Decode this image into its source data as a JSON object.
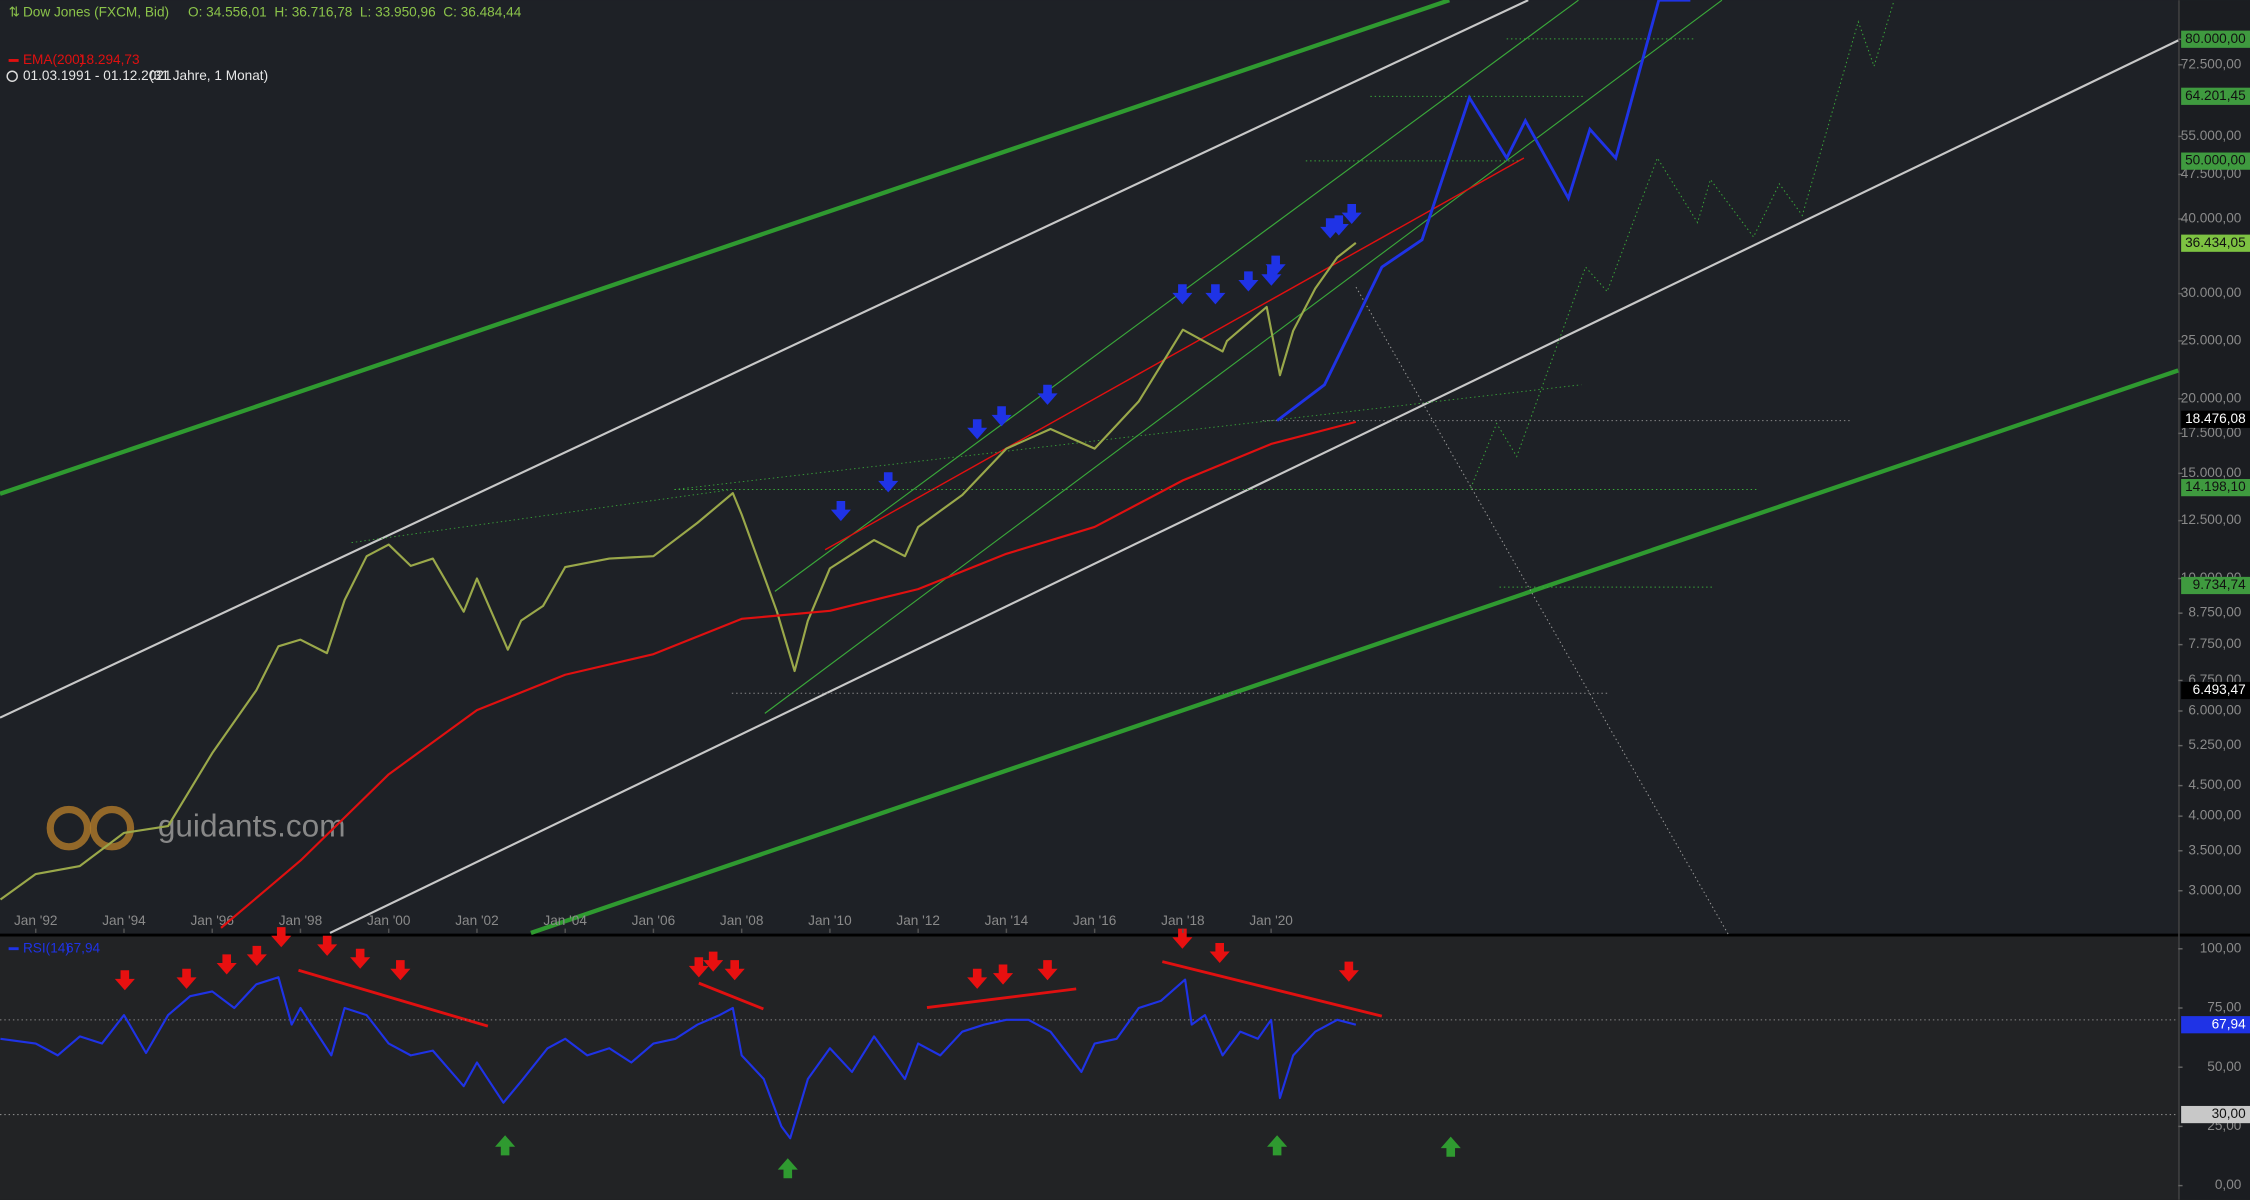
{
  "chart_data": [
    {
      "type": "line",
      "title": "Dow Jones (FXCM, Bid)",
      "quote": "O: 34.556,01  H: 36.716,78  L: 33.950,96  C: 36.484,44",
      "period": "01.03.1991 - 01.12.2021",
      "period_length": "(31 Jahre, 1 Monat)",
      "watermark": "guidants.com",
      "log_scale": true,
      "xlim": [
        1991.19,
        2040.56
      ],
      "ylim": [
        2550,
        93000
      ],
      "xticks": [
        {
          "value": 1992,
          "label": "Jan '92"
        },
        {
          "value": 1994,
          "label": "Jan '94"
        },
        {
          "value": 1996,
          "label": "Jan '96"
        },
        {
          "value": 1998,
          "label": "Jan '98"
        },
        {
          "value": 2000,
          "label": "Jan '00"
        },
        {
          "value": 2002,
          "label": "Jan '02"
        },
        {
          "value": 2004,
          "label": "Jan '04"
        },
        {
          "value": 2006,
          "label": "Jan '06"
        },
        {
          "value": 2008,
          "label": "Jan '08"
        },
        {
          "value": 2010,
          "label": "Jan '10"
        },
        {
          "value": 2012,
          "label": "Jan '12"
        },
        {
          "value": 2014,
          "label": "Jan '14"
        },
        {
          "value": 2016,
          "label": "Jan '16"
        },
        {
          "value": 2018,
          "label": "Jan '18"
        },
        {
          "value": 2020,
          "label": "Jan '20"
        }
      ],
      "yticks": [
        {
          "value": 80000,
          "label": "80.000,00"
        },
        {
          "value": 72500,
          "label": "72.500,00"
        },
        {
          "value": 55000,
          "label": "55.000,00"
        },
        {
          "value": 47500,
          "label": "47.500,00"
        },
        {
          "value": 40000,
          "label": "40.000,00"
        },
        {
          "value": 30000,
          "label": "30.000,00"
        },
        {
          "value": 25000,
          "label": "25.000,00"
        },
        {
          "value": 20000,
          "label": "20.000,00"
        },
        {
          "value": 17500,
          "label": "17.500,00"
        },
        {
          "value": 15000,
          "label": "15.000,00"
        },
        {
          "value": 12500,
          "label": "12.500,00"
        },
        {
          "value": 10000,
          "label": "10.000,00"
        },
        {
          "value": 8750,
          "label": "8.750,00"
        },
        {
          "value": 7750,
          "label": "7.750,00"
        },
        {
          "value": 6750,
          "label": "6.750,00"
        },
        {
          "value": 6000,
          "label": "6.000,00"
        },
        {
          "value": 5250,
          "label": "5.250,00"
        },
        {
          "value": 4500,
          "label": "4.500,00"
        },
        {
          "value": 4000,
          "label": "4.000,00"
        },
        {
          "value": 3500,
          "label": "3.500,00"
        },
        {
          "value": 3000,
          "label": "3.000,00"
        }
      ],
      "series": [
        {
          "color": "#9aa84a",
          "x": [
            1991.2,
            1992,
            1993,
            1994,
            1995,
            1996,
            1997,
            1997.5,
            1998,
            1998.6,
            1999,
            1999.5,
            2000,
            2000.5,
            2001,
            2001.7,
            2002,
            2002.7,
            2003,
            2003.5,
            2004,
            2005,
            2006,
            2007,
            2007.8,
            2008,
            2008.8,
            2009.2,
            2009.5,
            2010,
            2011,
            2011.7,
            2012,
            2013,
            2014,
            2015,
            2016,
            2017,
            2018,
            2018.9,
            2019,
            2019.9,
            2020.2,
            2020.5,
            2021,
            2021.5,
            2021.92
          ],
          "values": [
            2900,
            3200,
            3300,
            3750,
            3850,
            5100,
            6500,
            7700,
            7900,
            7500,
            9200,
            10900,
            11400,
            10500,
            10800,
            8800,
            10000,
            7600,
            8500,
            9000,
            10450,
            10800,
            10900,
            12400,
            13900,
            12800,
            8800,
            7000,
            8500,
            10400,
            11600,
            10900,
            12200,
            13800,
            16500,
            17800,
            16500,
            19800,
            26100,
            24000,
            25000,
            28500,
            21900,
            26000,
            30600,
            34500,
            36484
          ]
        },
        {
          "name": "EMA(200)",
          "last_label": "18.294,73",
          "color": "#e01010",
          "x": [
            1996.2,
            1998,
            2000,
            2002,
            2004,
            2006,
            2008,
            2010,
            2012,
            2014,
            2016,
            2018,
            2020,
            2021.92
          ],
          "values": [
            2600,
            3370,
            4700,
            6020,
            6900,
            7470,
            8560,
            8830,
            9600,
            11000,
            12200,
            14600,
            16800,
            18295
          ]
        }
      ],
      "price_labels": [
        {
          "value": 80000,
          "label": "80.000,00",
          "color": "#3f9a3f"
        },
        {
          "value": 64201.45,
          "label": "64.201,45",
          "color": "#3f9a3f"
        },
        {
          "value": 50000,
          "label": "50.000,00",
          "color": "#3f9a3f"
        },
        {
          "value": 36434.05,
          "label": "36.434,05",
          "color": "#7dc242"
        },
        {
          "value": 18476.08,
          "label": "18.476,08",
          "color": "#000000"
        },
        {
          "value": 14198.1,
          "label": "14.198,10",
          "color": "#3f9a3f"
        },
        {
          "value": 9734.74,
          "label": "9.734,74",
          "color": "#3f9a3f"
        },
        {
          "value": 6493.47,
          "label": "6.493,47",
          "color": "#000000"
        }
      ]
    },
    {
      "type": "line",
      "title": "RSI(14)",
      "xlim": [
        1991.19,
        2040.56
      ],
      "ylim": [
        -6,
        105.5
      ],
      "yticks": [
        {
          "value": 0,
          "label": "0,00"
        },
        {
          "value": 25,
          "label": "25,00"
        },
        {
          "value": 50,
          "label": "50,00"
        },
        {
          "value": 75,
          "label": "75,00"
        },
        {
          "value": 100,
          "label": "100,00"
        }
      ],
      "levels": [
        70,
        30
      ],
      "series": [
        {
          "color": "#1f33e6",
          "x": [
            1991.2,
            1992,
            1992.5,
            1993,
            1993.5,
            1994,
            1994.5,
            1995,
            1995.5,
            1996,
            1996.5,
            1997,
            1997.5,
            1997.8,
            1998,
            1998.7,
            1999,
            1999.5,
            2000,
            2000.5,
            2001,
            2001.7,
            2002,
            2002.6,
            2003,
            2003.6,
            2004,
            2004.5,
            2005,
            2005.5,
            2006,
            2006.5,
            2007,
            2007.5,
            2007.8,
            2008,
            2008.5,
            2008.9,
            2009.1,
            2009.5,
            2010,
            2010.5,
            2011,
            2011.7,
            2012,
            2012.5,
            2013,
            2013.5,
            2014,
            2014.5,
            2015,
            2015.7,
            2016,
            2016.5,
            2017,
            2017.5,
            2018.05,
            2018.2,
            2018.5,
            2018.9,
            2019.3,
            2019.7,
            2020,
            2020.2,
            2020.5,
            2021,
            2021.5,
            2021.92
          ],
          "values": [
            62,
            60,
            55,
            63,
            60,
            72,
            56,
            72,
            80,
            82,
            75,
            85,
            88,
            68,
            75,
            55,
            75,
            72,
            60,
            55,
            57,
            42,
            52,
            35,
            44,
            58,
            62,
            55,
            58,
            52,
            60,
            62,
            68,
            72,
            75,
            55,
            45,
            25,
            20,
            45,
            58,
            48,
            63,
            45,
            60,
            55,
            65,
            68,
            70,
            70,
            65,
            48,
            60,
            62,
            75,
            78,
            87,
            68,
            72,
            55,
            65,
            62,
            70,
            37,
            55,
            65,
            70,
            67.94
          ]
        }
      ],
      "price_labels": [
        {
          "value": 67.94,
          "label": "67,94",
          "color": "#1f33e6"
        },
        {
          "value": 30,
          "label": "30,00",
          "color": "#c8c8c8"
        }
      ]
    }
  ]
}
